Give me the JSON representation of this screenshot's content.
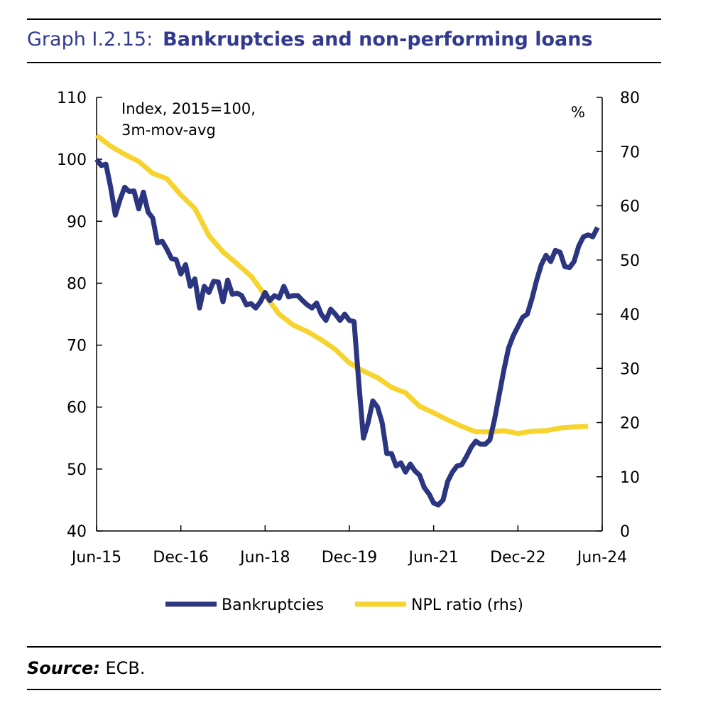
{
  "header": {
    "label": "Graph I.2.15:",
    "title": "Bankruptcies and non-performing loans"
  },
  "source": {
    "label": "Source:",
    "text": "ECB."
  },
  "chart_data": {
    "type": "line",
    "left_axis_note": [
      "Index, 2015=100,",
      "3m-mov-avg"
    ],
    "right_axis_note": "%",
    "x_ticks": [
      "Jun-15",
      "Dec-16",
      "Jun-18",
      "Dec-19",
      "Jun-21",
      "Dec-22",
      "Jun-24"
    ],
    "x_start": "Jun-15",
    "x_end": "Jun-24",
    "ylim_left": [
      40,
      110
    ],
    "ylim_right": [
      0,
      80
    ],
    "y_ticks_left": [
      40,
      50,
      60,
      70,
      80,
      90,
      100,
      110
    ],
    "y_ticks_right": [
      0,
      10,
      20,
      30,
      40,
      50,
      60,
      70,
      80
    ],
    "grid": false,
    "legend_position": "bottom",
    "colors": {
      "Bankruptcies": "#2b3580",
      "NPL ratio (rhs)": "#f6d32d"
    },
    "series": [
      {
        "name": "Bankruptcies",
        "axis": "left",
        "points": [
          [
            "2015-06",
            100.0
          ],
          [
            "2015-07",
            99.0
          ],
          [
            "2015-08",
            99.2
          ],
          [
            "2015-09",
            95.5
          ],
          [
            "2015-10",
            91.0
          ],
          [
            "2015-11",
            93.5
          ],
          [
            "2015-12",
            95.5
          ],
          [
            "2016-01",
            94.8
          ],
          [
            "2016-02",
            94.9
          ],
          [
            "2016-03",
            92.0
          ],
          [
            "2016-04",
            94.7
          ],
          [
            "2016-05",
            91.5
          ],
          [
            "2016-06",
            90.5
          ],
          [
            "2016-07",
            86.5
          ],
          [
            "2016-08",
            86.8
          ],
          [
            "2016-09",
            85.5
          ],
          [
            "2016-10",
            84.0
          ],
          [
            "2016-11",
            83.8
          ],
          [
            "2016-12",
            81.5
          ],
          [
            "2017-01",
            83.0
          ],
          [
            "2017-02",
            79.5
          ],
          [
            "2017-03",
            80.7
          ],
          [
            "2017-04",
            76.0
          ],
          [
            "2017-05",
            79.5
          ],
          [
            "2017-06",
            78.5
          ],
          [
            "2017-07",
            80.3
          ],
          [
            "2017-08",
            80.2
          ],
          [
            "2017-09",
            77.0
          ],
          [
            "2017-10",
            80.5
          ],
          [
            "2017-11",
            78.2
          ],
          [
            "2017-12",
            78.4
          ],
          [
            "2018-01",
            78.0
          ],
          [
            "2018-02",
            76.5
          ],
          [
            "2018-03",
            76.7
          ],
          [
            "2018-04",
            76.0
          ],
          [
            "2018-05",
            77.0
          ],
          [
            "2018-06",
            78.5
          ],
          [
            "2018-07",
            77.2
          ],
          [
            "2018-08",
            78.0
          ],
          [
            "2018-09",
            77.6
          ],
          [
            "2018-10",
            79.5
          ],
          [
            "2018-11",
            77.8
          ],
          [
            "2018-12",
            78.0
          ],
          [
            "2019-01",
            78.0
          ],
          [
            "2019-02",
            77.2
          ],
          [
            "2019-03",
            76.5
          ],
          [
            "2019-04",
            76.0
          ],
          [
            "2019-05",
            76.8
          ],
          [
            "2019-06",
            75.0
          ],
          [
            "2019-07",
            74.0
          ],
          [
            "2019-08",
            75.8
          ],
          [
            "2019-09",
            75.0
          ],
          [
            "2019-10",
            74.0
          ],
          [
            "2019-11",
            75.0
          ],
          [
            "2019-12",
            74.0
          ],
          [
            "2020-01",
            73.8
          ],
          [
            "2020-02",
            64.0
          ],
          [
            "2020-03",
            55.0
          ],
          [
            "2020-04",
            57.5
          ],
          [
            "2020-05",
            61.0
          ],
          [
            "2020-06",
            60.0
          ],
          [
            "2020-07",
            57.5
          ],
          [
            "2020-08",
            52.5
          ],
          [
            "2020-09",
            52.5
          ],
          [
            "2020-10",
            50.5
          ],
          [
            "2020-11",
            51.0
          ],
          [
            "2020-12",
            49.5
          ],
          [
            "2021-01",
            50.8
          ],
          [
            "2021-02",
            49.7
          ],
          [
            "2021-03",
            49.0
          ],
          [
            "2021-04",
            47.0
          ],
          [
            "2021-05",
            46.0
          ],
          [
            "2021-06",
            44.5
          ],
          [
            "2021-07",
            44.2
          ],
          [
            "2021-08",
            45.0
          ],
          [
            "2021-09",
            48.0
          ],
          [
            "2021-10",
            49.5
          ],
          [
            "2021-11",
            50.5
          ],
          [
            "2021-12",
            50.7
          ],
          [
            "2022-01",
            52.0
          ],
          [
            "2022-02",
            53.5
          ],
          [
            "2022-03",
            54.5
          ],
          [
            "2022-04",
            54.0
          ],
          [
            "2022-05",
            54.0
          ],
          [
            "2022-06",
            54.7
          ],
          [
            "2022-07",
            58.0
          ],
          [
            "2022-08",
            62.0
          ],
          [
            "2022-09",
            66.0
          ],
          [
            "2022-10",
            69.5
          ],
          [
            "2022-11",
            71.5
          ],
          [
            "2022-12",
            73.0
          ],
          [
            "2023-01",
            74.5
          ],
          [
            "2023-02",
            75.0
          ],
          [
            "2023-03",
            77.5
          ],
          [
            "2023-04",
            80.5
          ],
          [
            "2023-05",
            83.0
          ],
          [
            "2023-06",
            84.5
          ],
          [
            "2023-07",
            83.5
          ],
          [
            "2023-08",
            85.3
          ],
          [
            "2023-09",
            85.0
          ],
          [
            "2023-10",
            82.7
          ],
          [
            "2023-11",
            82.5
          ],
          [
            "2023-12",
            83.5
          ],
          [
            "2024-01",
            86.0
          ],
          [
            "2024-02",
            87.5
          ],
          [
            "2024-03",
            87.8
          ],
          [
            "2024-04",
            87.5
          ],
          [
            "2024-05",
            89.0
          ]
        ]
      },
      {
        "name": "NPL ratio (rhs)",
        "axis": "right",
        "points": [
          [
            "2015-06",
            73.0
          ],
          [
            "2015-09",
            71.0
          ],
          [
            "2015-12",
            69.5
          ],
          [
            "2016-03",
            68.2
          ],
          [
            "2016-06",
            66.0
          ],
          [
            "2016-09",
            65.0
          ],
          [
            "2016-12",
            62.0
          ],
          [
            "2017-03",
            59.5
          ],
          [
            "2017-06",
            54.5
          ],
          [
            "2017-09",
            51.5
          ],
          [
            "2017-12",
            49.3
          ],
          [
            "2018-03",
            47.0
          ],
          [
            "2018-06",
            43.5
          ],
          [
            "2018-09",
            40.0
          ],
          [
            "2018-12",
            38.0
          ],
          [
            "2019-03",
            36.8
          ],
          [
            "2019-06",
            35.3
          ],
          [
            "2019-09",
            33.5
          ],
          [
            "2019-12",
            31.0
          ],
          [
            "2020-03",
            29.5
          ],
          [
            "2020-06",
            28.3
          ],
          [
            "2020-09",
            26.5
          ],
          [
            "2020-12",
            25.5
          ],
          [
            "2021-03",
            23.0
          ],
          [
            "2021-06",
            21.8
          ],
          [
            "2021-09",
            20.5
          ],
          [
            "2021-12",
            19.3
          ],
          [
            "2022-03",
            18.3
          ],
          [
            "2022-06",
            18.3
          ],
          [
            "2022-09",
            18.5
          ],
          [
            "2022-12",
            18.0
          ],
          [
            "2023-03",
            18.4
          ],
          [
            "2023-06",
            18.5
          ],
          [
            "2023-09",
            19.0
          ],
          [
            "2023-12",
            19.2
          ],
          [
            "2024-03",
            19.3
          ]
        ]
      }
    ]
  }
}
